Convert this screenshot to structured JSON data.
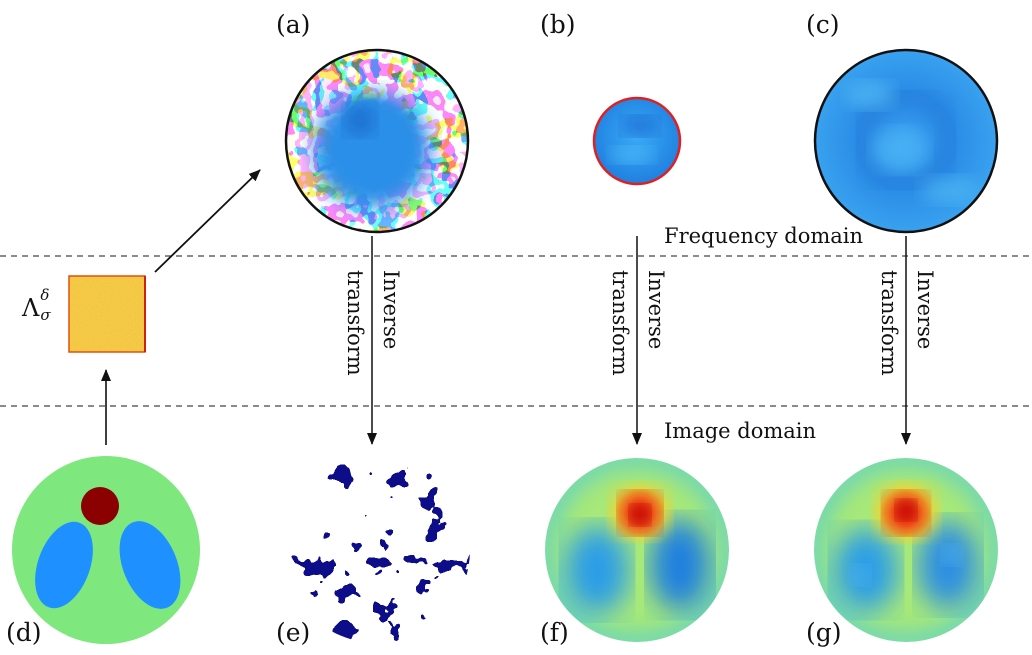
{
  "panel_labels": {
    "a": "(a)",
    "b": "(b)",
    "c": "(c)",
    "d": "(d)",
    "e": "(e)",
    "f": "(f)",
    "g": "(g)"
  },
  "domains": {
    "frequency": "Frequency domain",
    "image": "Image domain"
  },
  "arrow_text": {
    "line1": "Inverse",
    "line2": "transform"
  },
  "matrix_label": {
    "symbol": "Λ",
    "superscript": "δ",
    "subscript": "σ"
  },
  "colors": {
    "background_green": "#7ee87e",
    "inclusion_red": "#8b0000",
    "inclusion_blue": "#1e90ff",
    "speckle_navy": "#0d0d8a",
    "spectrum_blue": "#2e9be8",
    "border_red": "#e02020",
    "matrix_orange": "#f0b020"
  }
}
